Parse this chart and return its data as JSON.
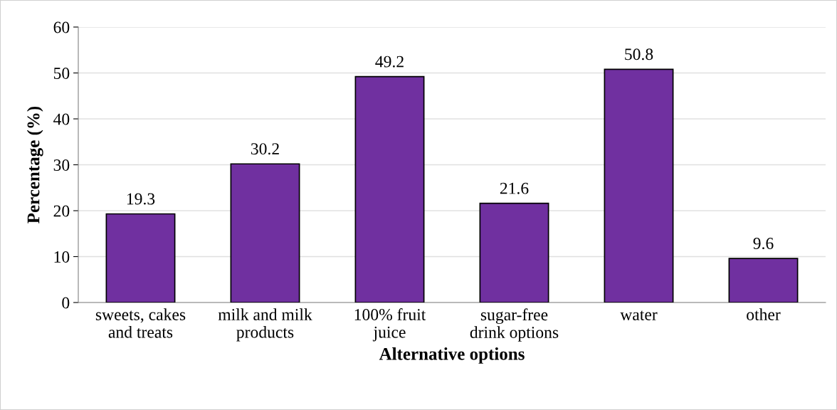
{
  "chart_data": {
    "type": "bar",
    "xlabel": "Alternative options",
    "ylabel": "Percentage (%)",
    "categories": [
      "sweets, cakes\nand treats",
      "milk and milk\nproducts",
      "100% fruit\njuice",
      "sugar-free\ndrink options",
      "water",
      "other"
    ],
    "values": [
      19.3,
      30.2,
      49.2,
      21.6,
      50.8,
      9.6
    ],
    "color": "#7030a0",
    "ylim": [
      0,
      60
    ],
    "yticks": [
      0,
      10,
      20,
      30,
      40,
      50,
      60
    ],
    "grid": "y",
    "data_labels": true
  }
}
